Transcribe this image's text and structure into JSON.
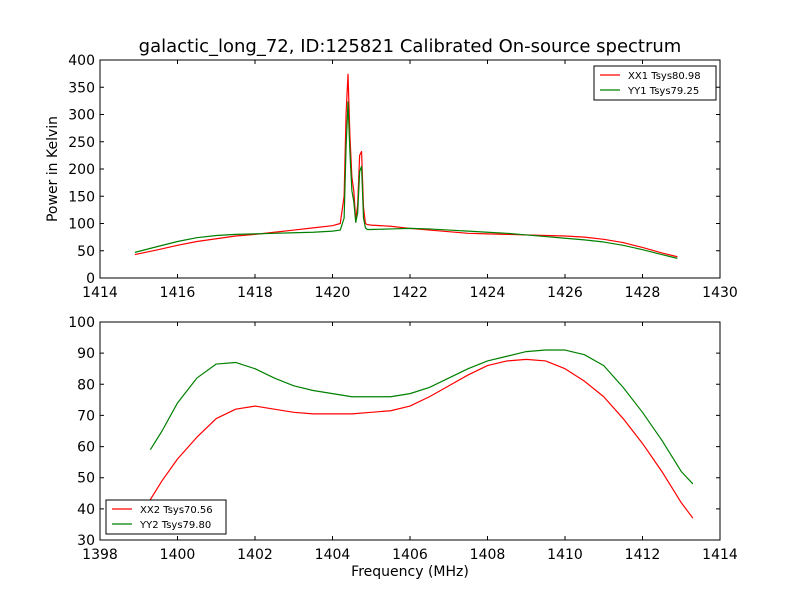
{
  "title": "galactic_long_72, ID:125821 Calibrated On-source spectrum",
  "chart_data": [
    {
      "type": "line",
      "ylabel": "Power in Kelvin",
      "xlabel": "",
      "xlim": [
        1414,
        1430
      ],
      "ylim": [
        0,
        400
      ],
      "xticks": [
        1414,
        1416,
        1418,
        1420,
        1422,
        1424,
        1426,
        1428,
        1430
      ],
      "yticks": [
        0,
        50,
        100,
        150,
        200,
        250,
        300,
        350,
        400
      ],
      "legend_position": "top-right",
      "grid": false,
      "series": [
        {
          "name": "XX1 Tsys80.98",
          "color": "#ff0000",
          "x": [
            1414.9,
            1415.5,
            1416.0,
            1416.5,
            1417.0,
            1417.5,
            1418.0,
            1418.5,
            1419.0,
            1419.5,
            1420.0,
            1420.2,
            1420.3,
            1420.35,
            1420.4,
            1420.45,
            1420.5,
            1420.55,
            1420.6,
            1420.65,
            1420.7,
            1420.75,
            1420.8,
            1420.85,
            1420.9,
            1421.0,
            1421.5,
            1422.0,
            1422.5,
            1423.0,
            1423.5,
            1424.0,
            1424.5,
            1425.0,
            1425.5,
            1426.0,
            1426.5,
            1427.0,
            1427.5,
            1428.0,
            1428.5,
            1428.9
          ],
          "y": [
            43,
            52,
            60,
            67,
            72,
            77,
            80,
            84,
            88,
            92,
            96,
            100,
            150,
            300,
            374,
            260,
            185,
            160,
            105,
            135,
            225,
            232,
            130,
            100,
            98,
            97,
            95,
            91,
            88,
            85,
            82,
            81,
            80,
            79,
            78,
            77,
            75,
            71,
            65,
            56,
            46,
            39
          ]
        },
        {
          "name": "YY1 Tsys79.25",
          "color": "#008000",
          "x": [
            1414.9,
            1415.5,
            1416.0,
            1416.5,
            1417.0,
            1417.5,
            1418.0,
            1418.5,
            1419.0,
            1419.5,
            1420.0,
            1420.2,
            1420.3,
            1420.35,
            1420.4,
            1420.45,
            1420.5,
            1420.55,
            1420.6,
            1420.65,
            1420.7,
            1420.75,
            1420.8,
            1420.85,
            1420.9,
            1421.0,
            1421.5,
            1422.0,
            1422.5,
            1423.0,
            1423.5,
            1424.0,
            1424.5,
            1425.0,
            1425.5,
            1426.0,
            1426.5,
            1427.0,
            1427.5,
            1428.0,
            1428.5,
            1428.9
          ],
          "y": [
            47,
            58,
            67,
            74,
            78,
            80,
            81,
            82,
            83,
            84,
            86,
            88,
            110,
            240,
            323,
            230,
            160,
            140,
            102,
            120,
            195,
            205,
            110,
            92,
            89,
            89,
            90,
            91,
            90,
            88,
            86,
            84,
            82,
            79,
            76,
            73,
            70,
            66,
            60,
            52,
            43,
            36
          ]
        }
      ]
    },
    {
      "type": "line",
      "ylabel": "",
      "xlabel": "Frequency (MHz)",
      "xlim": [
        1398,
        1414
      ],
      "ylim": [
        30,
        100
      ],
      "xticks": [
        1398,
        1400,
        1402,
        1404,
        1406,
        1408,
        1410,
        1412,
        1414
      ],
      "yticks": [
        30,
        40,
        50,
        60,
        70,
        80,
        90,
        100
      ],
      "legend_position": "bottom-left",
      "grid": false,
      "series": [
        {
          "name": "XX2 Tsys70.56",
          "color": "#ff0000",
          "x": [
            1399.3,
            1399.6,
            1400.0,
            1400.5,
            1401.0,
            1401.5,
            1402.0,
            1402.5,
            1403.0,
            1403.5,
            1404.0,
            1404.5,
            1405.0,
            1405.5,
            1406.0,
            1406.5,
            1407.0,
            1407.5,
            1408.0,
            1408.5,
            1409.0,
            1409.5,
            1410.0,
            1410.5,
            1411.0,
            1411.5,
            1412.0,
            1412.5,
            1413.0,
            1413.3
          ],
          "y": [
            43,
            49,
            56,
            63,
            69,
            72,
            73,
            72,
            71,
            70.5,
            70.5,
            70.5,
            71,
            71.5,
            73,
            76,
            79.5,
            83,
            86,
            87.5,
            88,
            87.5,
            85,
            81,
            76,
            69,
            61,
            52,
            42,
            37
          ]
        },
        {
          "name": "YY2 Tsys79.80",
          "color": "#008000",
          "x": [
            1399.3,
            1399.6,
            1400.0,
            1400.5,
            1401.0,
            1401.5,
            1402.0,
            1402.5,
            1403.0,
            1403.5,
            1404.0,
            1404.5,
            1405.0,
            1405.5,
            1406.0,
            1406.5,
            1407.0,
            1407.5,
            1408.0,
            1408.5,
            1409.0,
            1409.5,
            1410.0,
            1410.5,
            1411.0,
            1411.5,
            1412.0,
            1412.5,
            1413.0,
            1413.3
          ],
          "y": [
            59,
            65,
            74,
            82,
            86.5,
            87,
            85,
            82,
            79.5,
            78,
            77,
            76,
            76,
            76,
            77,
            79,
            82,
            85,
            87.5,
            89,
            90.5,
            91,
            91,
            89.5,
            86,
            79,
            71,
            62,
            52,
            48
          ]
        }
      ]
    }
  ]
}
